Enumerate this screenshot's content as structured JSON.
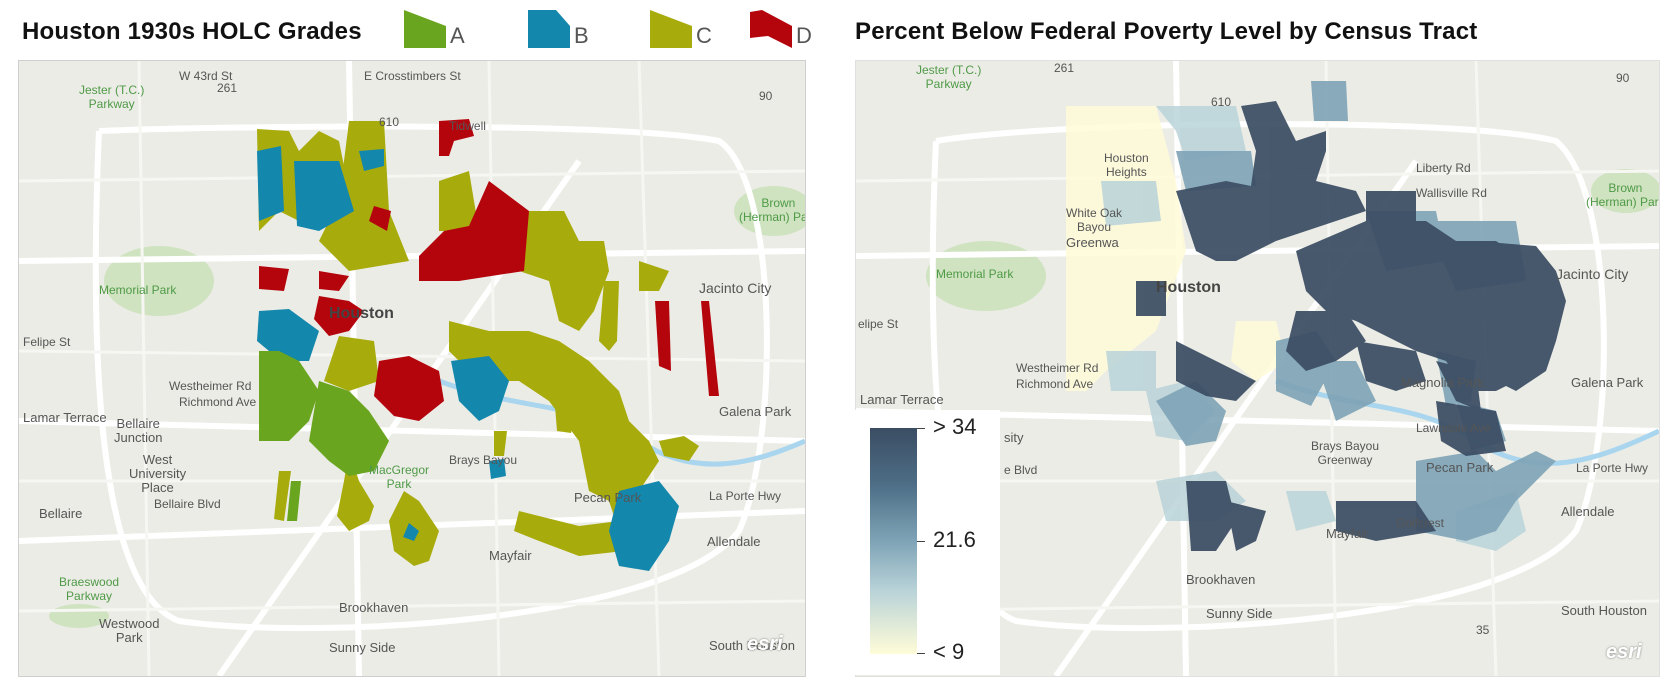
{
  "left_panel": {
    "title": "Houston 1930s HOLC Grades",
    "legend": [
      {
        "label": "A",
        "color": "#6aa51f"
      },
      {
        "label": "B",
        "color": "#1487ad"
      },
      {
        "label": "C",
        "color": "#a8ab0c"
      },
      {
        "label": "D",
        "color": "#b5050c"
      }
    ],
    "map_labels": {
      "jester": "Jester (T.C.)\nParkway",
      "hwy261": "261",
      "w43rd": "W 43rd St",
      "crosstimbers": "E Crosstimbers St",
      "hwy610": "610",
      "hwy90": "90",
      "tidwell": "Tidwell",
      "brown_park": "Brown\n(Herman) Park",
      "memorial_park": "Memorial Park",
      "jacinto_city": "Jacinto City",
      "houston": "Houston",
      "felipe": "Felipe St",
      "westheimer": "Westheimer Rd",
      "richmond": "Richmond Ave",
      "lamar_terrace": "Lamar Terrace",
      "bellaire_junction": "Bellaire\nJunction",
      "west_university": "West\nUniversity\nPlace",
      "bellaire_blvd": "Bellaire Blvd",
      "bellaire": "Bellaire",
      "braeswood": "Braeswood\nParkway",
      "westwood_park": "Westwood\nPark",
      "brookhaven": "Brookhaven",
      "sunny_side": "Sunny Side",
      "mayfair": "Mayfair",
      "pecan_park": "Pecan Park",
      "allendale": "Allendale",
      "galena_park": "Galena Park",
      "south_houston": "South Houston",
      "la_porte_hwy": "La Porte Hwy",
      "macgregor": "MacGregor\nPark",
      "brays": "Brays Bayou",
      "esri": "esri"
    }
  },
  "right_panel": {
    "title": "Percent Below Federal Poverty Level by Census Tract",
    "legend_ticks": [
      "> 34",
      "21.6",
      "< 9"
    ],
    "colors": {
      "low": "#fffcd8",
      "mid": "#7ea3b6",
      "high": "#3b4d63"
    },
    "map_labels": {
      "jester": "Jester (T.C.)\nParkway",
      "hwy261": "261",
      "hwy610": "610",
      "hwy90": "90",
      "houston_heights": "Houston\nHeights",
      "white_oak": "White Oak\nBayou",
      "greenway": "Greenwa",
      "memorial_park": "Memorial Park",
      "houston": "Houston",
      "felipe": "elipe St",
      "westheimer": "Westheimer Rd",
      "richmond": "Richmond Ave",
      "lamar_terrace": "Lamar Terrace",
      "jacinto_city": "Jacinto City",
      "brown_park": "Brown\n(Herman) Park",
      "liberty": "Liberty Rd",
      "wallisville": "Wallisville Rd",
      "magnolia_park": "Magnolia Park",
      "galena_park": "Galena Park",
      "lawndale": "Lawndale Ave",
      "brays": "Brays Bayou\nGreenway",
      "pecan_park": "Pecan Park",
      "la_porte_hwy": "La Porte Hwy",
      "allendale": "Allendale",
      "golfcrest": "Golfcrest",
      "mayfair": "Mayfair",
      "brookhaven": "Brookhaven",
      "sunny_side": "Sunny Side",
      "south_houston": "South Houston",
      "hwy35": "35",
      "sity": "sity",
      "e_blvd": "e Blvd",
      "esri": "esri"
    }
  }
}
